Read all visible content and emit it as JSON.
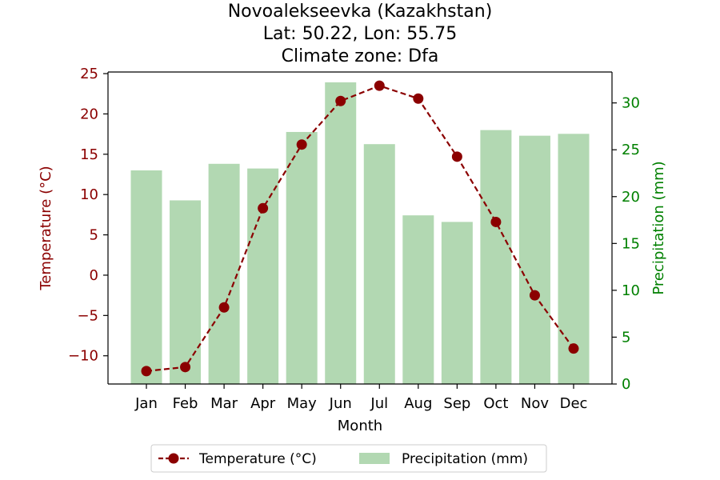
{
  "chart_data": {
    "type": "bar+line",
    "title_lines": [
      "Novoalekseevka (Kazakhstan)",
      "Lat: 50.22, Lon: 55.75",
      "Climate zone: Dfa"
    ],
    "xlabel": "Month",
    "ylabel_left": "Temperature (°C)",
    "ylabel_right": "Precipitation (mm)",
    "categories": [
      "Jan",
      "Feb",
      "Mar",
      "Apr",
      "May",
      "Jun",
      "Jul",
      "Aug",
      "Sep",
      "Oct",
      "Nov",
      "Dec"
    ],
    "temperature": {
      "name": "Temperature (°C)",
      "values": [
        -11.9,
        -11.4,
        -4.0,
        8.3,
        16.2,
        21.6,
        23.5,
        21.9,
        14.7,
        6.6,
        -2.5,
        -9.1
      ],
      "color": "#8b0000",
      "ylim": [
        -13.5,
        25.2
      ],
      "ticks": [
        -10,
        -5,
        0,
        5,
        10,
        15,
        20,
        25
      ]
    },
    "precipitation": {
      "name": "Precipitation (mm)",
      "values": [
        22.8,
        19.6,
        23.5,
        23.0,
        26.9,
        32.2,
        25.6,
        18.0,
        17.3,
        27.1,
        26.5,
        26.7
      ],
      "color": "#b2d8b2",
      "ylim": [
        0,
        33.3
      ],
      "ticks": [
        0,
        5,
        10,
        15,
        20,
        25,
        30
      ]
    },
    "tick_labels_left": [
      "−10",
      "−5",
      "0",
      "5",
      "10",
      "15",
      "20",
      "25"
    ],
    "tick_labels_right": [
      "0",
      "5",
      "10",
      "15",
      "20",
      "25",
      "30"
    ],
    "legend": {
      "placement": "bottom-center",
      "items": [
        "Temperature (°C)",
        "Precipitation (mm)"
      ]
    },
    "colors": {
      "left_axis": "#8b0000",
      "right_axis": "#008000"
    }
  }
}
